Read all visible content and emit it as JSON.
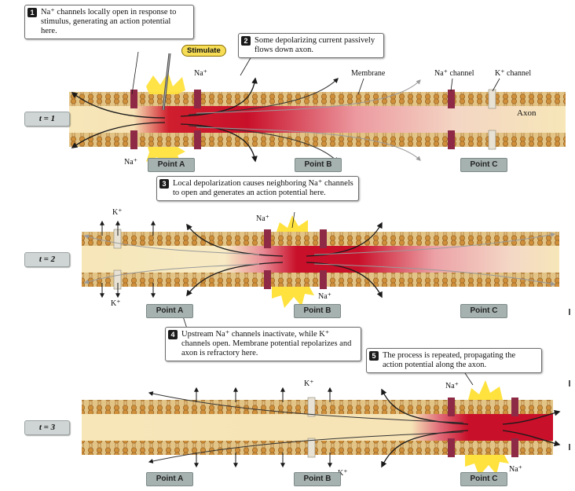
{
  "callouts": {
    "c1": {
      "num": "1",
      "text": "Na⁺ channels locally open in response to stimulus, generating an action potential here."
    },
    "c2": {
      "num": "2",
      "text": "Some depolarizing current passively flows down axon."
    },
    "c3": {
      "num": "3",
      "text": "Local depolarization causes neighboring Na⁺ channels to open and generates an action potential here."
    },
    "c4": {
      "num": "4",
      "text": "Upstream Na⁺ channels inactivate, while K⁺ channels open. Membrane potential repolarizes and axon is refractory here."
    },
    "c5": {
      "num": "5",
      "text": "The process is repeated, propagating the action potential along the axon."
    }
  },
  "labels": {
    "stimulate": "Stimulate",
    "membrane": "Membrane",
    "na_channel": "Na⁺ channel",
    "k_channel": "K⁺ channel",
    "axon": "Axon",
    "na": "Na⁺",
    "k": "K⁺"
  },
  "times": [
    "t = 1",
    "t = 2",
    "t = 3"
  ],
  "points": [
    "Point A",
    "Point B",
    "Point C"
  ],
  "colors": {
    "membrane": "#d9a24a",
    "membrane_head": "#e9bd6b",
    "axon_bg": "#f6e6b8",
    "depolarized": "#c9102a",
    "flash": "#ffe23d",
    "na_channel": "#8e2a45",
    "k_channel": "#d7d2c2"
  }
}
